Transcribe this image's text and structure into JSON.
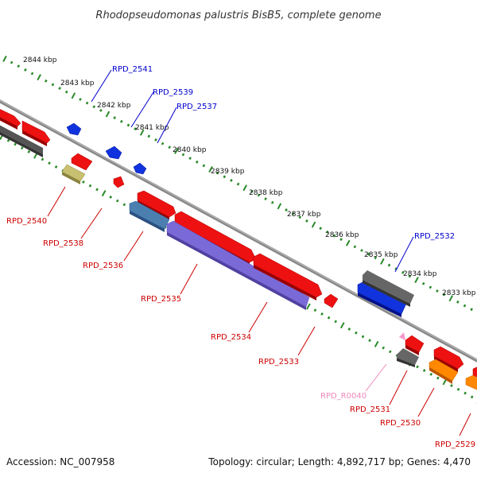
{
  "title": "Rhodopseudomonas palustris BisB5, complete genome",
  "footer": {
    "accession": "Accession: NC_007958",
    "summary": "Topology: circular; Length: 4,892,717 bp; Genes: 4,470"
  },
  "colors": {
    "forward_label": "#0000cc",
    "reverse_label": "#cc0000",
    "rna_label": "#ee88bb",
    "backbone": "#888888",
    "tick": "#2a8a2a",
    "gene_red": "#ee1111",
    "gene_blue": "#1133dd",
    "gene_gray": "#666666",
    "gene_orange": "#ff8800",
    "gene_olive": "#c8c070",
    "gene_steel": "#4a7fb0",
    "gene_purple": "#7a6ad8",
    "gene_pink": "#f59ac8"
  },
  "scale": {
    "ticks": [
      "2844 kbp",
      "2843 kbp",
      "2842 kbp",
      "2841 kbp",
      "2840 kbp",
      "2839 kbp",
      "2838 kbp",
      "2837 kbp",
      "2836 kbp",
      "2835 kbp",
      "2834 kbp",
      "2833 kbp"
    ]
  },
  "gene_labels": {
    "forward": [
      "RPD_2541",
      "RPD_2539",
      "RPD_2537",
      "RPD_2532"
    ],
    "reverse": [
      "RPD_2540",
      "RPD_2538",
      "RPD_2536",
      "RPD_2535",
      "RPD_2534",
      "RPD_2533",
      "RPD_2531",
      "RPD_2530",
      "RPD_2529"
    ],
    "rna": [
      "RPD_R0040"
    ]
  }
}
